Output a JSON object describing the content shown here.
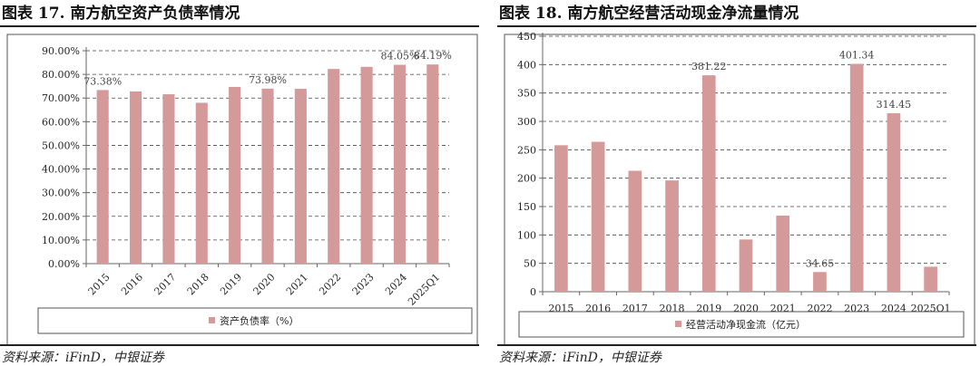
{
  "left_figure": {
    "title": "图表 17. 南方航空资产负债率情况",
    "source": "资料来源：iFinD，中银证券"
  },
  "right_figure": {
    "title": "图表 18. 南方航空经营活动现金净流量情况",
    "source": "资料来源：iFinD，中银证券"
  },
  "colors": {
    "bar": "#d49a9a",
    "grid": "#444444",
    "axis": "#666666"
  },
  "chart_data": [
    {
      "type": "bar",
      "categories": [
        "2015",
        "2016",
        "2017",
        "2018",
        "2019",
        "2020",
        "2021",
        "2022",
        "2023",
        "2024",
        "2025Q1"
      ],
      "series": [
        {
          "name": "资产负债率（%）",
          "values": [
            73.38,
            72.8,
            71.6,
            68.0,
            74.7,
            73.98,
            73.9,
            82.3,
            83.2,
            84.05,
            84.19
          ]
        }
      ],
      "data_labels": [
        {
          "index": 0,
          "text": "73.38%"
        },
        {
          "index": 5,
          "text": "73.98%"
        },
        {
          "index": 9,
          "text": "84.05%"
        },
        {
          "index": 10,
          "text": "84.19%"
        }
      ],
      "yticks": [
        "0.00%",
        "10.00%",
        "20.00%",
        "30.00%",
        "40.00%",
        "50.00%",
        "60.00%",
        "70.00%",
        "80.00%",
        "90.00%"
      ],
      "ylim": [
        0,
        90
      ],
      "xlabel": "",
      "ylabel": "",
      "x_tick_rotation": "rotated",
      "grid": "horizontal dashed",
      "legend": "bottom"
    },
    {
      "type": "bar",
      "categories": [
        "2015",
        "2016",
        "2017",
        "2018",
        "2019",
        "2020",
        "2021",
        "2022",
        "2023",
        "2024",
        "2025Q1"
      ],
      "series": [
        {
          "name": "经营活动净现金流（亿元）",
          "values": [
            258,
            264,
            213,
            196,
            381.22,
            92,
            134,
            34.65,
            401.34,
            314.45,
            44
          ]
        }
      ],
      "data_labels": [
        {
          "index": 4,
          "text": "381.22"
        },
        {
          "index": 7,
          "text": "34.65"
        },
        {
          "index": 8,
          "text": "401.34"
        },
        {
          "index": 9,
          "text": "314.45"
        }
      ],
      "yticks": [
        "0",
        "50",
        "100",
        "150",
        "200",
        "250",
        "300",
        "350",
        "400",
        "450"
      ],
      "ylim": [
        0,
        450
      ],
      "xlabel": "",
      "ylabel": "",
      "x_tick_rotation": "none",
      "grid": "horizontal dashed",
      "legend": "bottom"
    }
  ]
}
